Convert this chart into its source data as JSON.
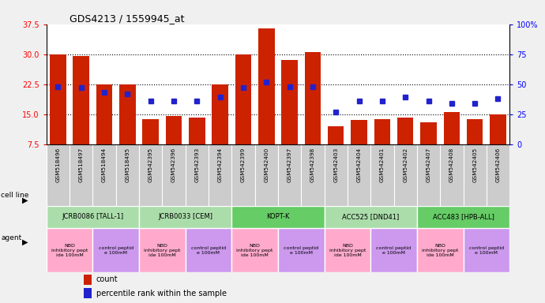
{
  "title": "GDS4213 / 1559945_at",
  "samples": [
    "GSM518496",
    "GSM518497",
    "GSM518494",
    "GSM518495",
    "GSM542395",
    "GSM542396",
    "GSM542393",
    "GSM542394",
    "GSM542399",
    "GSM542400",
    "GSM542397",
    "GSM542398",
    "GSM542403",
    "GSM542404",
    "GSM542401",
    "GSM542402",
    "GSM542407",
    "GSM542408",
    "GSM542405",
    "GSM542406"
  ],
  "counts": [
    30.0,
    29.5,
    22.5,
    22.5,
    13.8,
    14.5,
    14.2,
    22.5,
    30.0,
    36.5,
    28.5,
    30.5,
    12.0,
    13.5,
    13.8,
    14.2,
    13.0,
    15.5,
    13.8,
    15.0
  ],
  "percentiles": [
    48,
    47,
    43,
    42,
    36,
    36,
    36,
    39,
    47,
    52,
    48,
    48,
    27,
    36,
    36,
    39,
    36,
    34,
    34,
    38
  ],
  "cell_lines": [
    {
      "label": "JCRB0086 [TALL-1]",
      "start": 0,
      "end": 4,
      "color": "#aaddaa"
    },
    {
      "label": "JCRB0033 [CEM]",
      "start": 4,
      "end": 8,
      "color": "#aaddaa"
    },
    {
      "label": "KOPT-K",
      "start": 8,
      "end": 12,
      "color": "#66cc66"
    },
    {
      "label": "ACC525 [DND41]",
      "start": 12,
      "end": 16,
      "color": "#aaddaa"
    },
    {
      "label": "ACC483 [HPB-ALL]",
      "start": 16,
      "end": 20,
      "color": "#66cc66"
    }
  ],
  "agents": [
    {
      "label": "NBD\ninhibitory pept\nide 100mM",
      "start": 0,
      "end": 2,
      "color": "#ffaacc"
    },
    {
      "label": "control peptid\ne 100mM",
      "start": 2,
      "end": 4,
      "color": "#cc99ee"
    },
    {
      "label": "NBD\ninhibitory pept\nide 100mM",
      "start": 4,
      "end": 6,
      "color": "#ffaacc"
    },
    {
      "label": "control peptid\ne 100mM",
      "start": 6,
      "end": 8,
      "color": "#cc99ee"
    },
    {
      "label": "NBD\ninhibitory pept\nide 100mM",
      "start": 8,
      "end": 10,
      "color": "#ffaacc"
    },
    {
      "label": "control peptid\ne 100mM",
      "start": 10,
      "end": 12,
      "color": "#cc99ee"
    },
    {
      "label": "NBD\ninhibitory pept\nide 100mM",
      "start": 12,
      "end": 14,
      "color": "#ffaacc"
    },
    {
      "label": "control peptid\ne 100mM",
      "start": 14,
      "end": 16,
      "color": "#cc99ee"
    },
    {
      "label": "NBD\ninhibitory pept\nide 100mM",
      "start": 16,
      "end": 18,
      "color": "#ffaacc"
    },
    {
      "label": "control peptid\ne 100mM",
      "start": 18,
      "end": 20,
      "color": "#cc99ee"
    }
  ],
  "ylim_left": [
    7.5,
    37.5
  ],
  "ylim_right": [
    0,
    100
  ],
  "yticks_left": [
    7.5,
    15.0,
    22.5,
    30.0,
    37.5
  ],
  "yticks_right": [
    0,
    25,
    50,
    75,
    100
  ],
  "ytick_labels_right": [
    "0",
    "25",
    "50",
    "75",
    "100%"
  ],
  "bar_color": "#cc2200",
  "dot_color": "#2222cc",
  "xticklabel_bg": "#cccccc",
  "plot_bg": "#ffffff"
}
